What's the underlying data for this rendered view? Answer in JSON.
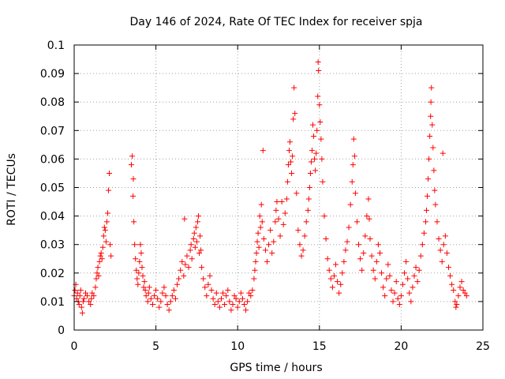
{
  "chart_data": {
    "type": "scatter",
    "title": "Day 146 of 2024, Rate Of TEC Index for receiver spja",
    "xlabel": "GPS time / hours",
    "ylabel": "ROTI / TECUs",
    "xlim": [
      0,
      25
    ],
    "ylim": [
      0,
      0.1
    ],
    "xticks": [
      0,
      5,
      10,
      15,
      20,
      25
    ],
    "xtick_labels": [
      "0",
      "5",
      "10",
      "15",
      "20",
      "25"
    ],
    "yticks": [
      0,
      0.01,
      0.02,
      0.03,
      0.04,
      0.05,
      0.06,
      0.07,
      0.08,
      0.09,
      0.1
    ],
    "ytick_labels": [
      "0",
      "0.01",
      "0.02",
      "0.03",
      "0.04",
      "0.05",
      "0.06",
      "0.07",
      "0.08",
      "0.09",
      "0.1"
    ],
    "grid": true,
    "marker": "+",
    "color": "#ff0000",
    "series": [
      {
        "name": "ROTI",
        "points": [
          [
            0.0,
            0.012
          ],
          [
            0.05,
            0.014
          ],
          [
            0.1,
            0.016
          ],
          [
            0.15,
            0.011
          ],
          [
            0.2,
            0.013
          ],
          [
            0.25,
            0.01
          ],
          [
            0.3,
            0.009
          ],
          [
            0.35,
            0.012
          ],
          [
            0.4,
            0.014
          ],
          [
            0.45,
            0.008
          ],
          [
            0.5,
            0.006
          ],
          [
            0.55,
            0.01
          ],
          [
            0.6,
            0.011
          ],
          [
            0.7,
            0.013
          ],
          [
            0.8,
            0.012
          ],
          [
            0.9,
            0.01
          ],
          [
            1.0,
            0.009
          ],
          [
            1.05,
            0.011
          ],
          [
            1.1,
            0.013
          ],
          [
            1.2,
            0.012
          ],
          [
            1.3,
            0.015
          ],
          [
            1.35,
            0.018
          ],
          [
            1.4,
            0.02
          ],
          [
            1.45,
            0.022
          ],
          [
            1.5,
            0.019
          ],
          [
            1.55,
            0.024
          ],
          [
            1.6,
            0.026
          ],
          [
            1.65,
            0.027
          ],
          [
            1.7,
            0.025
          ],
          [
            1.75,
            0.029
          ],
          [
            1.8,
            0.033
          ],
          [
            1.85,
            0.036
          ],
          [
            1.9,
            0.035
          ],
          [
            1.95,
            0.031
          ],
          [
            2.0,
            0.038
          ],
          [
            2.05,
            0.041
          ],
          [
            2.1,
            0.049
          ],
          [
            2.15,
            0.055
          ],
          [
            2.2,
            0.03
          ],
          [
            2.25,
            0.026
          ],
          [
            3.5,
            0.058
          ],
          [
            3.55,
            0.061
          ],
          [
            3.6,
            0.047
          ],
          [
            3.62,
            0.053
          ],
          [
            3.65,
            0.038
          ],
          [
            3.7,
            0.03
          ],
          [
            3.75,
            0.025
          ],
          [
            3.8,
            0.021
          ],
          [
            3.85,
            0.018
          ],
          [
            3.9,
            0.016
          ],
          [
            3.95,
            0.02
          ],
          [
            4.0,
            0.024
          ],
          [
            4.05,
            0.03
          ],
          [
            4.1,
            0.027
          ],
          [
            4.15,
            0.022
          ],
          [
            4.2,
            0.019
          ],
          [
            4.25,
            0.015
          ],
          [
            4.3,
            0.017
          ],
          [
            4.35,
            0.014
          ],
          [
            4.4,
            0.012
          ],
          [
            4.5,
            0.01
          ],
          [
            4.55,
            0.013
          ],
          [
            4.6,
            0.015
          ],
          [
            4.7,
            0.011
          ],
          [
            4.8,
            0.009
          ],
          [
            4.9,
            0.012
          ],
          [
            5.0,
            0.014
          ],
          [
            5.1,
            0.011
          ],
          [
            5.2,
            0.008
          ],
          [
            5.3,
            0.01
          ],
          [
            5.4,
            0.013
          ],
          [
            5.5,
            0.015
          ],
          [
            5.6,
            0.012
          ],
          [
            5.7,
            0.009
          ],
          [
            5.8,
            0.007
          ],
          [
            5.9,
            0.01
          ],
          [
            6.0,
            0.012
          ],
          [
            6.1,
            0.014
          ],
          [
            6.2,
            0.011
          ],
          [
            6.3,
            0.016
          ],
          [
            6.4,
            0.018
          ],
          [
            6.5,
            0.021
          ],
          [
            6.6,
            0.024
          ],
          [
            6.7,
            0.019
          ],
          [
            6.75,
            0.039
          ],
          [
            6.8,
            0.023
          ],
          [
            6.9,
            0.026
          ],
          [
            7.0,
            0.022
          ],
          [
            7.1,
            0.028
          ],
          [
            7.15,
            0.03
          ],
          [
            7.2,
            0.025
          ],
          [
            7.3,
            0.032
          ],
          [
            7.35,
            0.034
          ],
          [
            7.4,
            0.029
          ],
          [
            7.45,
            0.036
          ],
          [
            7.5,
            0.031
          ],
          [
            7.55,
            0.038
          ],
          [
            7.6,
            0.04
          ],
          [
            7.65,
            0.027
          ],
          [
            7.7,
            0.033
          ],
          [
            7.75,
            0.028
          ],
          [
            7.8,
            0.022
          ],
          [
            7.9,
            0.018
          ],
          [
            8.0,
            0.015
          ],
          [
            8.1,
            0.012
          ],
          [
            8.2,
            0.016
          ],
          [
            8.3,
            0.019
          ],
          [
            8.4,
            0.014
          ],
          [
            8.5,
            0.011
          ],
          [
            8.6,
            0.009
          ],
          [
            8.7,
            0.013
          ],
          [
            8.8,
            0.01
          ],
          [
            8.9,
            0.008
          ],
          [
            9.0,
            0.011
          ],
          [
            9.1,
            0.013
          ],
          [
            9.2,
            0.009
          ],
          [
            9.3,
            0.012
          ],
          [
            9.4,
            0.014
          ],
          [
            9.5,
            0.01
          ],
          [
            9.6,
            0.007
          ],
          [
            9.7,
            0.009
          ],
          [
            9.8,
            0.012
          ],
          [
            9.9,
            0.011
          ],
          [
            10.0,
            0.008
          ],
          [
            10.1,
            0.01
          ],
          [
            10.2,
            0.013
          ],
          [
            10.3,
            0.011
          ],
          [
            10.4,
            0.009
          ],
          [
            10.5,
            0.007
          ],
          [
            10.6,
            0.01
          ],
          [
            10.7,
            0.013
          ],
          [
            10.8,
            0.012
          ],
          [
            10.9,
            0.014
          ],
          [
            11.0,
            0.018
          ],
          [
            11.05,
            0.021
          ],
          [
            11.1,
            0.024
          ],
          [
            11.15,
            0.027
          ],
          [
            11.2,
            0.031
          ],
          [
            11.25,
            0.034
          ],
          [
            11.3,
            0.029
          ],
          [
            11.35,
            0.04
          ],
          [
            11.4,
            0.036
          ],
          [
            11.45,
            0.044
          ],
          [
            11.5,
            0.038
          ],
          [
            11.55,
            0.063
          ],
          [
            11.6,
            0.032
          ],
          [
            11.7,
            0.028
          ],
          [
            11.8,
            0.024
          ],
          [
            11.9,
            0.03
          ],
          [
            12.0,
            0.035
          ],
          [
            12.1,
            0.027
          ],
          [
            12.2,
            0.031
          ],
          [
            12.3,
            0.038
          ],
          [
            12.35,
            0.042
          ],
          [
            12.4,
            0.045
          ],
          [
            12.5,
            0.039
          ],
          [
            12.6,
            0.033
          ],
          [
            12.7,
            0.045
          ],
          [
            12.8,
            0.037
          ],
          [
            12.9,
            0.041
          ],
          [
            13.0,
            0.046
          ],
          [
            13.05,
            0.052
          ],
          [
            13.1,
            0.058
          ],
          [
            13.15,
            0.063
          ],
          [
            13.2,
            0.066
          ],
          [
            13.25,
            0.059
          ],
          [
            13.3,
            0.055
          ],
          [
            13.35,
            0.061
          ],
          [
            13.4,
            0.074
          ],
          [
            13.45,
            0.085
          ],
          [
            13.5,
            0.076
          ],
          [
            13.6,
            0.048
          ],
          [
            13.7,
            0.035
          ],
          [
            13.8,
            0.03
          ],
          [
            13.9,
            0.026
          ],
          [
            14.0,
            0.028
          ],
          [
            14.1,
            0.033
          ],
          [
            14.2,
            0.038
          ],
          [
            14.3,
            0.042
          ],
          [
            14.35,
            0.046
          ],
          [
            14.4,
            0.05
          ],
          [
            14.45,
            0.055
          ],
          [
            14.5,
            0.059
          ],
          [
            14.55,
            0.063
          ],
          [
            14.6,
            0.072
          ],
          [
            14.65,
            0.068
          ],
          [
            14.7,
            0.06
          ],
          [
            14.75,
            0.056
          ],
          [
            14.8,
            0.062
          ],
          [
            14.85,
            0.07
          ],
          [
            14.9,
            0.082
          ],
          [
            14.92,
            0.094
          ],
          [
            14.95,
            0.091
          ],
          [
            15.0,
            0.079
          ],
          [
            15.05,
            0.073
          ],
          [
            15.1,
            0.067
          ],
          [
            15.15,
            0.06
          ],
          [
            15.2,
            0.052
          ],
          [
            15.3,
            0.04
          ],
          [
            15.4,
            0.032
          ],
          [
            15.5,
            0.025
          ],
          [
            15.6,
            0.021
          ],
          [
            15.7,
            0.018
          ],
          [
            15.8,
            0.015
          ],
          [
            15.9,
            0.019
          ],
          [
            16.0,
            0.023
          ],
          [
            16.1,
            0.017
          ],
          [
            16.2,
            0.013
          ],
          [
            16.3,
            0.016
          ],
          [
            16.4,
            0.02
          ],
          [
            16.5,
            0.024
          ],
          [
            16.6,
            0.028
          ],
          [
            16.7,
            0.031
          ],
          [
            16.8,
            0.036
          ],
          [
            16.9,
            0.044
          ],
          [
            17.0,
            0.052
          ],
          [
            17.05,
            0.058
          ],
          [
            17.1,
            0.067
          ],
          [
            17.15,
            0.061
          ],
          [
            17.2,
            0.048
          ],
          [
            17.3,
            0.038
          ],
          [
            17.4,
            0.03
          ],
          [
            17.5,
            0.025
          ],
          [
            17.6,
            0.021
          ],
          [
            17.7,
            0.027
          ],
          [
            17.8,
            0.033
          ],
          [
            17.9,
            0.04
          ],
          [
            18.0,
            0.046
          ],
          [
            18.05,
            0.039
          ],
          [
            18.1,
            0.032
          ],
          [
            18.2,
            0.026
          ],
          [
            18.3,
            0.021
          ],
          [
            18.4,
            0.018
          ],
          [
            18.5,
            0.024
          ],
          [
            18.6,
            0.03
          ],
          [
            18.7,
            0.027
          ],
          [
            18.8,
            0.02
          ],
          [
            18.9,
            0.015
          ],
          [
            19.0,
            0.012
          ],
          [
            19.1,
            0.018
          ],
          [
            19.2,
            0.023
          ],
          [
            19.3,
            0.019
          ],
          [
            19.4,
            0.014
          ],
          [
            19.5,
            0.01
          ],
          [
            19.6,
            0.013
          ],
          [
            19.7,
            0.017
          ],
          [
            19.8,
            0.011
          ],
          [
            19.9,
            0.009
          ],
          [
            20.0,
            0.012
          ],
          [
            20.1,
            0.016
          ],
          [
            20.2,
            0.02
          ],
          [
            20.3,
            0.024
          ],
          [
            20.4,
            0.018
          ],
          [
            20.5,
            0.013
          ],
          [
            20.6,
            0.01
          ],
          [
            20.7,
            0.015
          ],
          [
            20.8,
            0.019
          ],
          [
            20.9,
            0.022
          ],
          [
            21.0,
            0.017
          ],
          [
            21.1,
            0.021
          ],
          [
            21.2,
            0.026
          ],
          [
            21.3,
            0.03
          ],
          [
            21.4,
            0.034
          ],
          [
            21.5,
            0.038
          ],
          [
            21.55,
            0.042
          ],
          [
            21.6,
            0.047
          ],
          [
            21.65,
            0.053
          ],
          [
            21.7,
            0.06
          ],
          [
            21.75,
            0.068
          ],
          [
            21.8,
            0.075
          ],
          [
            21.82,
            0.08
          ],
          [
            21.85,
            0.085
          ],
          [
            21.9,
            0.072
          ],
          [
            21.95,
            0.064
          ],
          [
            22.0,
            0.056
          ],
          [
            22.05,
            0.049
          ],
          [
            22.1,
            0.044
          ],
          [
            22.2,
            0.038
          ],
          [
            22.3,
            0.032
          ],
          [
            22.4,
            0.028
          ],
          [
            22.5,
            0.024
          ],
          [
            22.55,
            0.062
          ],
          [
            22.6,
            0.03
          ],
          [
            22.7,
            0.033
          ],
          [
            22.8,
            0.027
          ],
          [
            22.9,
            0.022
          ],
          [
            23.0,
            0.019
          ],
          [
            23.1,
            0.016
          ],
          [
            23.2,
            0.014
          ],
          [
            23.3,
            0.01
          ],
          [
            23.35,
            0.008
          ],
          [
            23.4,
            0.009
          ],
          [
            23.5,
            0.012
          ],
          [
            23.6,
            0.015
          ],
          [
            23.7,
            0.017
          ],
          [
            23.8,
            0.014
          ],
          [
            23.9,
            0.013
          ],
          [
            24.0,
            0.012
          ]
        ]
      }
    ]
  }
}
